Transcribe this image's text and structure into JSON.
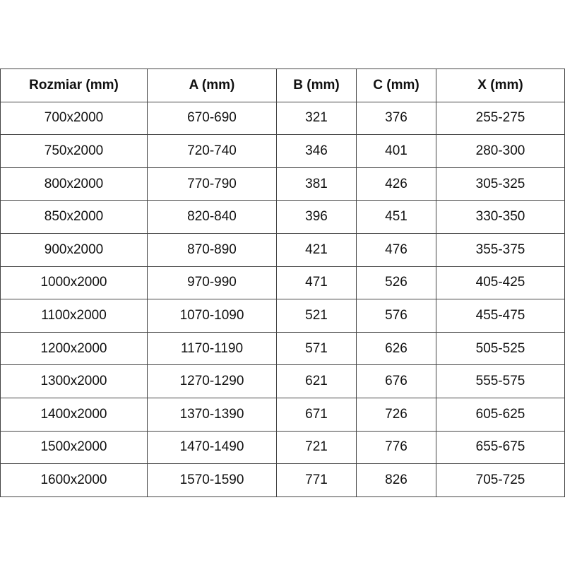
{
  "headers": [
    "Rozmiar (mm)",
    "A (mm)",
    "B (mm)",
    "C (mm)",
    "X (mm)"
  ],
  "rows": [
    [
      "700x2000",
      "670-690",
      "321",
      "376",
      "255-275"
    ],
    [
      "750x2000",
      "720-740",
      "346",
      "401",
      "280-300"
    ],
    [
      "800x2000",
      "770-790",
      "381",
      "426",
      "305-325"
    ],
    [
      "850x2000",
      "820-840",
      "396",
      "451",
      "330-350"
    ],
    [
      "900x2000",
      "870-890",
      "421",
      "476",
      "355-375"
    ],
    [
      "1000x2000",
      "970-990",
      "471",
      "526",
      "405-425"
    ],
    [
      "1100x2000",
      "1070-1090",
      "521",
      "576",
      "455-475"
    ],
    [
      "1200x2000",
      "1170-1190",
      "571",
      "626",
      "505-525"
    ],
    [
      "1300x2000",
      "1270-1290",
      "621",
      "676",
      "555-575"
    ],
    [
      "1400x2000",
      "1370-1390",
      "671",
      "726",
      "605-625"
    ],
    [
      "1500x2000",
      "1470-1490",
      "721",
      "776",
      "655-675"
    ],
    [
      "1600x2000",
      "1570-1590",
      "771",
      "826",
      "705-725"
    ]
  ]
}
